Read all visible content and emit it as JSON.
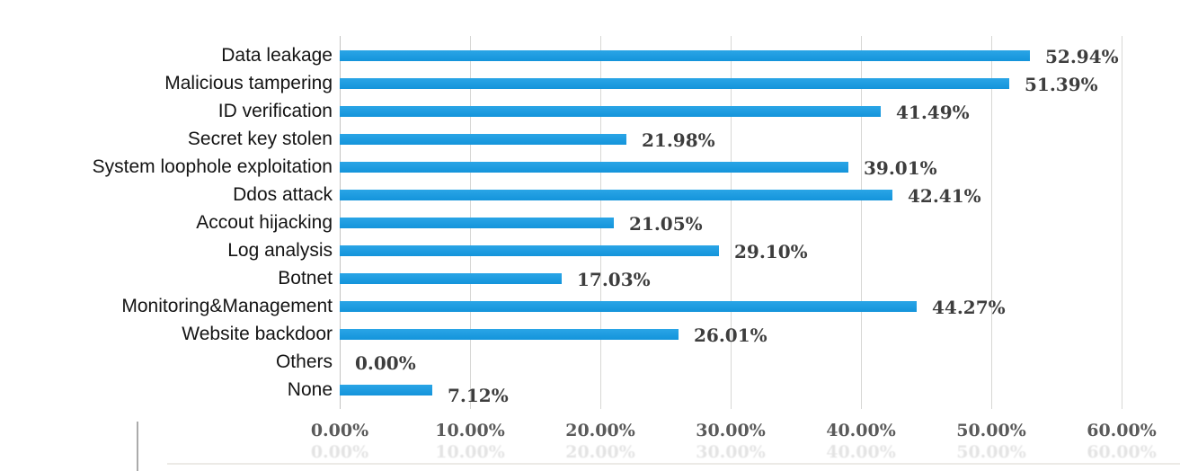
{
  "chart_data": {
    "type": "bar",
    "orientation": "horizontal",
    "title": "",
    "xlabel": "",
    "ylabel": "",
    "xlim": [
      0,
      60
    ],
    "grid": "vertical-gridlines-on",
    "legend": "none",
    "bar_color": "#1a9ce0",
    "categories": [
      "Data leakage",
      "Malicious tampering",
      "ID verification",
      "Secret key stolen",
      "System loophole exploitation",
      "Ddos attack",
      "Accout hijacking",
      "Log analysis",
      "Botnet",
      "Monitoring&Management",
      "Website backdoor",
      "Others",
      "None"
    ],
    "values": [
      52.94,
      51.39,
      41.49,
      21.98,
      39.01,
      42.41,
      21.05,
      29.1,
      17.03,
      44.27,
      26.01,
      0.0,
      7.12
    ],
    "value_labels": [
      "52.94%",
      "51.39%",
      "41.49%",
      "21.98%",
      "39.01%",
      "42.41%",
      "21.05%",
      "29.10%",
      "17.03%",
      "44.27%",
      "26.01%",
      "0.00%",
      "7.12%"
    ],
    "x_ticks": [
      {
        "value": 0,
        "label": "0.00%"
      },
      {
        "value": 10,
        "label": "10.00%"
      },
      {
        "value": 20,
        "label": "20.00%"
      },
      {
        "value": 30,
        "label": "30.00%"
      },
      {
        "value": 40,
        "label": "40.00%"
      },
      {
        "value": 50,
        "label": "50.00%"
      },
      {
        "value": 60,
        "label": "60.00%"
      }
    ]
  },
  "colors": {
    "bar": "#1a9ce0",
    "gridline": "#d7d7d5",
    "axis_line": "#c4c4c2",
    "category_text": "#141414",
    "value_text": "#3d3d3d",
    "tick_text": "#5a5a5a",
    "background": "#ffffff"
  }
}
